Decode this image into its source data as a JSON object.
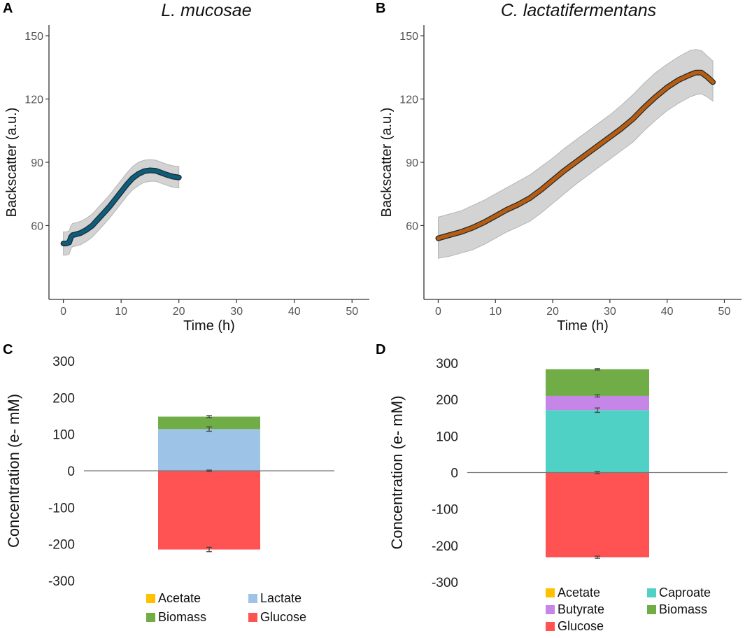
{
  "panels": {
    "A": {
      "letter": "A",
      "title": "L. mucosae"
    },
    "B": {
      "letter": "B",
      "title": "C. lactatifermentans"
    },
    "C": {
      "letter": "C"
    },
    "D": {
      "letter": "D"
    }
  },
  "chart_data": [
    {
      "id": "A",
      "type": "line",
      "title": "L. mucosae",
      "xlabel": "Time (h)",
      "ylabel": "Backscatter (a.u.)",
      "xlim": [
        -2.5,
        53
      ],
      "ylim": [
        25,
        155
      ],
      "xticks": [
        0,
        10,
        20,
        30,
        40,
        50
      ],
      "yticks": [
        60,
        90,
        120,
        150
      ],
      "color": "#0d5d7c",
      "band_color": "#d3d3d3",
      "series": [
        {
          "name": "L. mucosae",
          "x": [
            0,
            0.5,
            1,
            1.3,
            1.6,
            2,
            3,
            4,
            5,
            6,
            7,
            8,
            9,
            10,
            11,
            12,
            13,
            14,
            15,
            16,
            17,
            18,
            19,
            20
          ],
          "y": [
            51.5,
            51.5,
            52,
            54.5,
            55.5,
            55.7,
            56.5,
            58,
            60,
            63,
            66,
            69,
            72.5,
            76,
            79.5,
            82.5,
            84.5,
            85.8,
            86.2,
            86,
            85,
            84,
            83.2,
            82.8
          ],
          "upper": [
            57,
            57,
            57.5,
            60,
            61,
            61.2,
            62,
            63.5,
            65.5,
            68.5,
            71.5,
            74.5,
            78,
            81.5,
            85,
            88,
            90,
            91,
            91.3,
            91,
            90,
            89,
            88.3,
            88
          ],
          "lower": [
            46,
            46,
            46.5,
            49,
            50,
            50.2,
            51,
            52.5,
            54.5,
            57.5,
            60.5,
            63.5,
            67,
            70.5,
            74,
            77,
            79,
            80.5,
            81,
            81,
            80,
            79,
            78.2,
            77.8
          ]
        }
      ]
    },
    {
      "id": "B",
      "type": "line",
      "title": "C. lactatifermentans",
      "xlabel": "Time (h)",
      "ylabel": "Backscatter (a.u.)",
      "xlim": [
        -2.5,
        53
      ],
      "ylim": [
        25,
        155
      ],
      "xticks": [
        0,
        10,
        20,
        30,
        40,
        50
      ],
      "yticks": [
        60,
        90,
        120,
        150
      ],
      "color": "#b85c12",
      "band_color": "#d3d3d3",
      "series": [
        {
          "name": "C. lactatifermentans",
          "x": [
            0,
            2,
            4,
            6,
            8,
            10,
            12,
            14,
            16,
            18,
            20,
            22,
            24,
            26,
            28,
            30,
            32,
            34,
            36,
            38,
            40,
            42,
            44,
            45,
            46,
            47,
            48
          ],
          "y": [
            54,
            55.5,
            57,
            59,
            61.5,
            64.5,
            67.5,
            70,
            73,
            77,
            81.5,
            86,
            90,
            94,
            98,
            102,
            106,
            110.5,
            116,
            121,
            125.5,
            129,
            131.5,
            132.5,
            132.5,
            130.5,
            128
          ],
          "upper": [
            64,
            65.5,
            67,
            69.5,
            72,
            75,
            78,
            81,
            84,
            88,
            92,
            96.5,
            100.5,
            104.5,
            108.5,
            112.5,
            117,
            122,
            127.5,
            132.5,
            136.5,
            140,
            143,
            143.5,
            143,
            140.5,
            138
          ],
          "lower": [
            44.5,
            45.5,
            47,
            48.5,
            51,
            54,
            57,
            59.5,
            62,
            66,
            70.5,
            75,
            79.5,
            83.5,
            87.5,
            91.5,
            95.5,
            99.5,
            105,
            110,
            114.5,
            118,
            121,
            122,
            122.5,
            121,
            119
          ]
        }
      ]
    },
    {
      "id": "C",
      "type": "bar",
      "stacked": true,
      "ylabel": "Concentration (e- mM)",
      "ylim": [
        -300,
        300
      ],
      "yticks": [
        -300,
        -200,
        -100,
        0,
        100,
        200,
        300
      ],
      "segments": [
        {
          "name": "Glucose",
          "from": 0,
          "to": -215,
          "color": "#ff5252",
          "err": 6
        },
        {
          "name": "Lactate",
          "from": 0,
          "to": 114,
          "color": "#9dc3e6",
          "err": 6
        },
        {
          "name": "Biomass",
          "from": 114,
          "to": 148,
          "color": "#70ad47",
          "err": 3
        }
      ],
      "zero_err": 2,
      "legend": [
        {
          "label": "Acetate",
          "color": "#ffc000"
        },
        {
          "label": "Lactate",
          "color": "#9dc3e6"
        },
        {
          "label": "Biomass",
          "color": "#70ad47"
        },
        {
          "label": "Glucose",
          "color": "#ff5252"
        }
      ]
    },
    {
      "id": "D",
      "type": "bar",
      "stacked": true,
      "ylabel": "Concentration (e- mM)",
      "ylim": [
        -300,
        300
      ],
      "yticks": [
        -300,
        -200,
        -100,
        0,
        100,
        200,
        300
      ],
      "segments": [
        {
          "name": "Glucose",
          "from": 0,
          "to": -232,
          "color": "#ff5252",
          "err": 3
        },
        {
          "name": "Caproate",
          "from": 0,
          "to": 171,
          "color": "#4fd1c5",
          "err": 6
        },
        {
          "name": "Butyrate",
          "from": 171,
          "to": 210,
          "color": "#c586e8",
          "err": 3
        },
        {
          "name": "Biomass",
          "from": 210,
          "to": 283,
          "color": "#70ad47",
          "err": 2
        }
      ],
      "zero_err": 3,
      "legend": [
        {
          "label": "Acetate",
          "color": "#ffc000"
        },
        {
          "label": "Caproate",
          "color": "#4fd1c5"
        },
        {
          "label": "Butyrate",
          "color": "#c586e8"
        },
        {
          "label": "Biomass",
          "color": "#70ad47"
        },
        {
          "label": "Glucose",
          "color": "#ff5252"
        }
      ]
    }
  ]
}
